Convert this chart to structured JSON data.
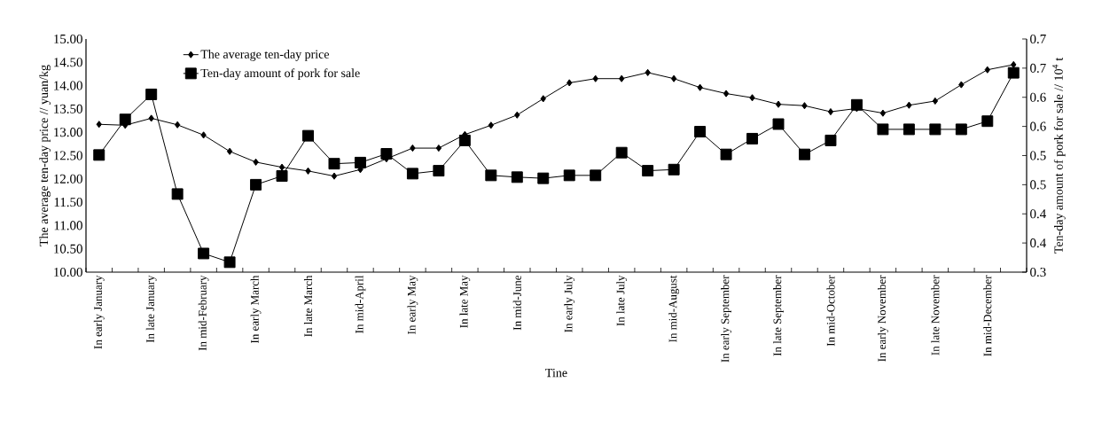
{
  "chart_data": {
    "type": "line",
    "xlabel": "Tine",
    "ylabel": "The average ten-day price // yuan/kg",
    "y2label": "Ten-day amount of pork for sale // 10$^{4}$ t",
    "categories": [
      "In early January",
      null,
      "In late January",
      null,
      "In mid-February",
      null,
      "In early March",
      null,
      "In late March",
      null,
      "In mid-April",
      null,
      "In early May",
      null,
      "In late May",
      null,
      "In mid-June",
      null,
      "In early July",
      null,
      "In late July",
      null,
      "In mid-August",
      null,
      "In early September",
      null,
      "In late September",
      null,
      "In mid-October",
      null,
      "In early November",
      null,
      "In late November",
      null,
      "In mid-December",
      null
    ],
    "series": [
      {
        "name": "The average ten-day price",
        "color": "#000000",
        "marker": "diamond",
        "values": [
          13.17,
          13.15,
          13.3,
          13.16,
          12.94,
          12.59,
          12.36,
          12.25,
          12.17,
          12.06,
          12.2,
          12.43,
          12.66,
          12.66,
          12.95,
          13.15,
          13.37,
          13.72,
          14.06,
          14.15,
          14.15,
          14.28,
          14.15,
          13.96,
          13.83,
          13.74,
          13.6,
          13.57,
          13.44,
          13.51,
          13.41,
          13.58,
          13.67,
          14.02,
          14.34,
          14.45
        ]
      },
      {
        "name": "Ten-day amount of pork for sale",
        "color": "#000000",
        "marker": "square",
        "axis": "y2",
        "values": [
          0.501,
          0.562,
          0.605,
          0.434,
          0.332,
          0.317,
          0.45,
          0.465,
          0.534,
          0.486,
          0.488,
          0.503,
          0.469,
          0.474,
          0.526,
          0.466,
          0.463,
          0.461,
          0.466,
          0.466,
          0.505,
          0.474,
          0.476,
          0.541,
          0.502,
          0.529,
          0.554,
          0.502,
          0.526,
          0.587,
          0.545,
          0.545,
          0.545,
          0.545,
          0.559,
          0.642
        ]
      }
    ],
    "ylim": [
      10,
      15
    ],
    "yticks": [
      {
        "value": 10,
        "label": "10.00"
      },
      {
        "value": 10.5,
        "label": "10.50"
      },
      {
        "value": 11,
        "label": "11.00"
      },
      {
        "value": 11.5,
        "label": "11.50"
      },
      {
        "value": 12,
        "label": "12.00"
      },
      {
        "value": 12.5,
        "label": "12.50"
      },
      {
        "value": 13,
        "label": "13.00"
      },
      {
        "value": 13.5,
        "label": "13.50"
      },
      {
        "value": 14,
        "label": "14.00"
      },
      {
        "value": 14.5,
        "label": "14.50"
      },
      {
        "value": 15,
        "label": "15.00"
      }
    ],
    "y2lim": [
      0.3,
      0.7
    ],
    "y2ticks": [
      0.3,
      {
        "value": 0.35,
        "label": "0.4"
      },
      0.4,
      {
        "value": 0.45,
        "label": "0.5"
      },
      0.5,
      {
        "value": 0.55,
        "label": "0.6"
      },
      0.6,
      {
        "value": 0.65,
        "label": "0.7"
      },
      0.7
    ],
    "legend": "top left",
    "line_style": "solid"
  }
}
